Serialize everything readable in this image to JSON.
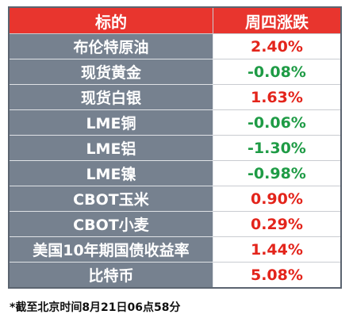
{
  "table": {
    "header": [
      "标的",
      "周四涨跌"
    ],
    "rows": [
      [
        "布伦特原油",
        "2.40%"
      ],
      [
        "现货黄金",
        "-0.08%"
      ],
      [
        "现货白银",
        "1.63%"
      ],
      [
        "LME铜",
        "-0.06%"
      ],
      [
        "LME铝",
        "-1.30%"
      ],
      [
        "LME镍",
        "-0.98%"
      ],
      [
        "CBOT玉米",
        "0.90%"
      ],
      [
        "CBOT小麦",
        "0.29%"
      ],
      [
        "美国10年期国债收益率",
        "1.44%"
      ],
      [
        "比特币",
        "5.08%"
      ]
    ]
  },
  "footnote": "*截至北京时间8月21日06点58分"
}
